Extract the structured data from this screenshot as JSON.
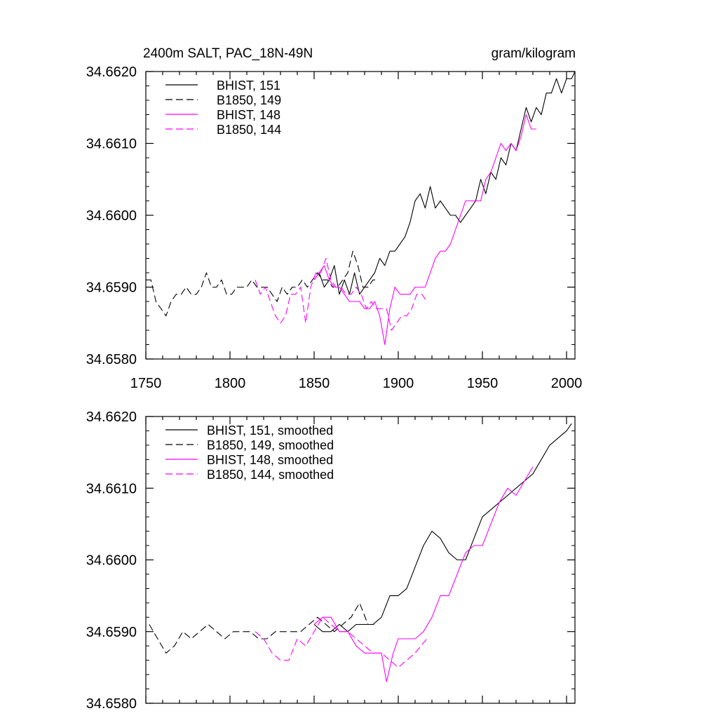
{
  "chart_data": [
    {
      "type": "line",
      "title": "2400m SALT, PAC_18N-49N",
      "units": "gram/kilogram",
      "xlim": [
        1750,
        2005
      ],
      "ylim": [
        34.658,
        34.662
      ],
      "x_ticks": [
        "1750",
        "1800",
        "1850",
        "1900",
        "1950",
        "2000"
      ],
      "y_ticks": [
        "34.6580",
        "34.6590",
        "34.6600",
        "34.6610",
        "34.6620"
      ],
      "grid": false,
      "legend_position": "top-left",
      "series": [
        {
          "name": "BHIST, 151",
          "color": "#000000",
          "dash": "solid",
          "x": [
            1850,
            1853,
            1856,
            1859,
            1862,
            1865,
            1868,
            1871,
            1874,
            1877,
            1880,
            1883,
            1886,
            1889,
            1892,
            1895,
            1898,
            1901,
            1904,
            1907,
            1910,
            1913,
            1916,
            1919,
            1922,
            1925,
            1928,
            1931,
            1934,
            1937,
            1940,
            1943,
            1946,
            1949,
            1952,
            1955,
            1958,
            1961,
            1964,
            1967,
            1970,
            1973,
            1976,
            1979,
            1982,
            1985,
            1988,
            1991,
            1994,
            1997,
            2000,
            2003,
            2005
          ],
          "y": [
            34.6591,
            34.6592,
            34.659,
            34.6591,
            34.6593,
            34.6589,
            34.6591,
            34.6589,
            34.6592,
            34.6589,
            34.659,
            34.6591,
            34.6592,
            34.6594,
            34.6593,
            34.6595,
            34.6595,
            34.6596,
            34.6597,
            34.6599,
            34.6602,
            34.6603,
            34.6601,
            34.6604,
            34.6601,
            34.6602,
            34.6601,
            34.66,
            34.66,
            34.6599,
            34.66,
            34.6601,
            34.6602,
            34.6605,
            34.6603,
            34.6606,
            34.6605,
            34.6608,
            34.6607,
            34.661,
            34.6609,
            34.6612,
            34.6615,
            34.6613,
            34.6615,
            34.6614,
            34.6617,
            34.6617,
            34.6619,
            34.6617,
            34.6619,
            34.6619,
            34.662
          ]
        },
        {
          "name": "B1850, 149",
          "color": "#000000",
          "dash": "dashed",
          "x": [
            1750,
            1753,
            1756,
            1759,
            1762,
            1765,
            1768,
            1771,
            1774,
            1777,
            1780,
            1783,
            1786,
            1789,
            1792,
            1795,
            1798,
            1801,
            1804,
            1807,
            1810,
            1813,
            1816,
            1819,
            1822,
            1825,
            1828,
            1831,
            1834,
            1837,
            1840,
            1843,
            1846,
            1849,
            1852,
            1855,
            1858,
            1861,
            1864,
            1867,
            1870,
            1873,
            1876,
            1879,
            1882,
            1885,
            1888
          ],
          "y": [
            34.6591,
            34.6591,
            34.6588,
            34.6587,
            34.6586,
            34.6588,
            34.6589,
            34.6589,
            34.659,
            34.6589,
            34.6589,
            34.659,
            34.6592,
            34.659,
            34.659,
            34.6591,
            34.6589,
            34.6589,
            34.659,
            34.659,
            34.659,
            34.6591,
            34.659,
            34.659,
            34.659,
            34.6589,
            34.6588,
            34.659,
            34.6589,
            34.659,
            34.659,
            34.6591,
            34.659,
            34.6591,
            34.6592,
            34.6591,
            34.6591,
            34.659,
            34.659,
            34.6591,
            34.6592,
            34.6595,
            34.6593,
            34.659,
            34.659,
            34.6591,
            34.6591
          ]
        },
        {
          "name": "BHIST, 148",
          "color": "#ff00ff",
          "dash": "solid",
          "x": [
            1850,
            1853,
            1856,
            1859,
            1862,
            1865,
            1868,
            1871,
            1874,
            1877,
            1880,
            1883,
            1886,
            1889,
            1892,
            1895,
            1898,
            1901,
            1904,
            1907,
            1910,
            1913,
            1916,
            1919,
            1922,
            1925,
            1928,
            1931,
            1934,
            1937,
            1940,
            1943,
            1946,
            1949,
            1952,
            1955,
            1958,
            1961,
            1964,
            1967,
            1970,
            1973,
            1976,
            1979,
            1982
          ],
          "y": [
            34.6591,
            34.6592,
            34.6593,
            34.6591,
            34.659,
            34.659,
            34.6589,
            34.6588,
            34.6588,
            34.6588,
            34.6587,
            34.6587,
            34.6588,
            34.6586,
            34.6582,
            34.6587,
            34.659,
            34.6589,
            34.6589,
            34.6589,
            34.659,
            34.659,
            34.659,
            34.6592,
            34.6594,
            34.6595,
            34.6595,
            34.6596,
            34.6598,
            34.66,
            34.6602,
            34.6602,
            34.6602,
            34.6602,
            34.6605,
            34.6606,
            34.6608,
            34.661,
            34.6609,
            34.661,
            34.6609,
            34.6611,
            34.6614,
            34.6612,
            34.6612
          ]
        },
        {
          "name": "B1850, 144",
          "color": "#ff00ff",
          "dash": "dashed",
          "x": [
            1815,
            1818,
            1821,
            1824,
            1827,
            1830,
            1833,
            1836,
            1839,
            1842,
            1845,
            1848,
            1851,
            1854,
            1857,
            1860,
            1863,
            1866,
            1869,
            1872,
            1875,
            1878,
            1881,
            1884,
            1887,
            1890,
            1893,
            1896,
            1899,
            1902,
            1905,
            1908,
            1911,
            1914,
            1917
          ],
          "y": [
            34.6591,
            34.6589,
            34.659,
            34.6588,
            34.6586,
            34.6585,
            34.6586,
            34.6589,
            34.6589,
            34.659,
            34.6585,
            34.659,
            34.6592,
            34.6592,
            34.6594,
            34.6591,
            34.659,
            34.659,
            34.6589,
            34.6589,
            34.659,
            34.6589,
            34.6587,
            34.6588,
            34.6587,
            34.6587,
            34.6587,
            34.6584,
            34.6585,
            34.6586,
            34.6586,
            34.6587,
            34.6589,
            34.6589,
            34.6588
          ]
        }
      ]
    },
    {
      "type": "line",
      "xlim": [
        1750,
        2005
      ],
      "ylim": [
        34.658,
        34.662
      ],
      "x_ticks": [],
      "y_ticks": [
        "34.6580",
        "34.6590",
        "34.6600",
        "34.6610",
        "34.6620"
      ],
      "grid": false,
      "legend_position": "top-left",
      "series": [
        {
          "name": "BHIST, 151, smoothed",
          "color": "#000000",
          "dash": "solid",
          "x": [
            1850,
            1855,
            1860,
            1865,
            1870,
            1875,
            1880,
            1885,
            1890,
            1895,
            1900,
            1905,
            1910,
            1915,
            1920,
            1925,
            1930,
            1935,
            1940,
            1945,
            1950,
            1955,
            1960,
            1965,
            1970,
            1975,
            1980,
            1985,
            1990,
            1995,
            2000,
            2003
          ],
          "y": [
            34.6591,
            34.659,
            34.659,
            34.6591,
            34.659,
            34.6591,
            34.6591,
            34.6591,
            34.6592,
            34.6595,
            34.6595,
            34.6596,
            34.6599,
            34.6602,
            34.6604,
            34.6603,
            34.6601,
            34.66,
            34.66,
            34.6603,
            34.6606,
            34.6607,
            34.6608,
            34.6609,
            34.661,
            34.6611,
            34.6612,
            34.6614,
            34.6616,
            34.6617,
            34.6618,
            34.6619
          ]
        },
        {
          "name": "B1850, 149, smoothed",
          "color": "#000000",
          "dash": "dashed",
          "x": [
            1752,
            1757,
            1762,
            1767,
            1772,
            1777,
            1782,
            1787,
            1792,
            1797,
            1802,
            1807,
            1812,
            1817,
            1822,
            1827,
            1832,
            1837,
            1842,
            1847,
            1852,
            1857,
            1862,
            1867,
            1872,
            1877,
            1882,
            1887
          ],
          "y": [
            34.6591,
            34.6589,
            34.6587,
            34.6588,
            34.659,
            34.6589,
            34.659,
            34.6591,
            34.659,
            34.6589,
            34.659,
            34.659,
            34.659,
            34.6589,
            34.6589,
            34.659,
            34.659,
            34.659,
            34.659,
            34.6591,
            34.6592,
            34.6591,
            34.659,
            34.6591,
            34.6592,
            34.6594,
            34.6591,
            34.6591
          ]
        },
        {
          "name": "BHIST, 148, smoothed",
          "color": "#ff00ff",
          "dash": "solid",
          "x": [
            1850,
            1855,
            1860,
            1865,
            1870,
            1875,
            1880,
            1885,
            1890,
            1893,
            1897,
            1900,
            1905,
            1910,
            1915,
            1920,
            1925,
            1930,
            1935,
            1940,
            1945,
            1950,
            1955,
            1960,
            1965,
            1970,
            1975,
            1980
          ],
          "y": [
            34.6591,
            34.6592,
            34.6592,
            34.659,
            34.659,
            34.6588,
            34.6587,
            34.6587,
            34.6587,
            34.6583,
            34.6587,
            34.6589,
            34.6589,
            34.6589,
            34.659,
            34.6592,
            34.6595,
            34.6595,
            34.6598,
            34.6601,
            34.6602,
            34.6602,
            34.6605,
            34.6608,
            34.661,
            34.6609,
            34.6611,
            34.6613
          ]
        },
        {
          "name": "B1850, 144, smoothed",
          "color": "#ff00ff",
          "dash": "dashed",
          "x": [
            1815,
            1820,
            1825,
            1830,
            1835,
            1840,
            1845,
            1850,
            1855,
            1860,
            1865,
            1870,
            1875,
            1880,
            1885,
            1890,
            1895,
            1900,
            1905,
            1910,
            1917
          ],
          "y": [
            34.659,
            34.6589,
            34.6587,
            34.6586,
            34.6586,
            34.6589,
            34.6588,
            34.659,
            34.6592,
            34.6591,
            34.659,
            34.659,
            34.6589,
            34.6588,
            34.6587,
            34.6587,
            34.6586,
            34.6585,
            34.6586,
            34.6587,
            34.6589
          ]
        }
      ]
    }
  ]
}
